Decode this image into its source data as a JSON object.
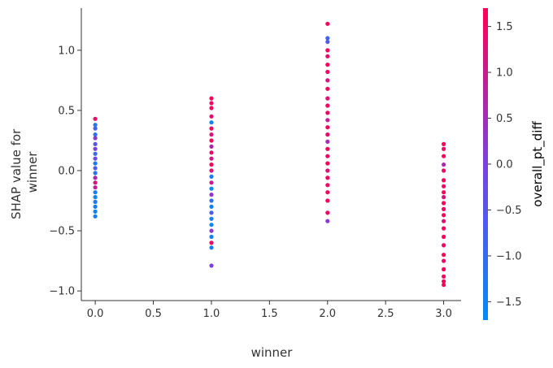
{
  "chart_data": {
    "type": "scatter",
    "title": "",
    "xlabel": "winner",
    "ylabel_lines": [
      "SHAP value for",
      "winner"
    ],
    "xlim": [
      -0.12,
      3.15
    ],
    "ylim": [
      -1.08,
      1.35
    ],
    "xticks": [
      0.0,
      0.5,
      1.0,
      1.5,
      2.0,
      2.5,
      3.0
    ],
    "xtick_labels": [
      "0.0",
      "0.5",
      "1.0",
      "1.5",
      "2.0",
      "2.5",
      "3.0"
    ],
    "yticks": [
      1.0,
      0.5,
      0.0,
      -0.5,
      -1.0
    ],
    "ytick_labels": [
      "1.0",
      "0.5",
      "0.0",
      "−0.5",
      "−1.0"
    ],
    "colorbar": {
      "label": "overall_pt_diff",
      "range": [
        -1.7,
        1.7
      ],
      "ticks": [
        1.5,
        1.0,
        0.5,
        0.0,
        -0.5,
        -1.0,
        -1.5
      ],
      "tick_labels": [
        "1.5",
        "1.0",
        "0.5",
        "0.0",
        "−0.5",
        "−1.0",
        "−1.5"
      ],
      "colors": [
        "#008bfb",
        "#7c3fe4",
        "#ff0052"
      ]
    },
    "groups": [
      {
        "x": 0.0,
        "y_range": [
          -0.38,
          0.43
        ],
        "color_range": [
          -1.7,
          1.3
        ],
        "points": [
          {
            "y": 0.43,
            "c": 1.5
          },
          {
            "y": 0.38,
            "c": -1.3
          },
          {
            "y": 0.35,
            "c": -0.8
          },
          {
            "y": 0.3,
            "c": -1.2
          },
          {
            "y": 0.27,
            "c": 0.2
          },
          {
            "y": 0.22,
            "c": -0.5
          },
          {
            "y": 0.18,
            "c": 0.0
          },
          {
            "y": 0.14,
            "c": -1.0
          },
          {
            "y": 0.1,
            "c": -0.3
          },
          {
            "y": 0.06,
            "c": -1.4
          },
          {
            "y": 0.02,
            "c": -0.6
          },
          {
            "y": -0.02,
            "c": -1.2
          },
          {
            "y": -0.06,
            "c": 0.6
          },
          {
            "y": -0.1,
            "c": 1.2
          },
          {
            "y": -0.14,
            "c": 0.9
          },
          {
            "y": -0.18,
            "c": -1.4
          },
          {
            "y": -0.22,
            "c": -1.6
          },
          {
            "y": -0.26,
            "c": -1.3
          },
          {
            "y": -0.3,
            "c": -1.5
          },
          {
            "y": -0.34,
            "c": -1.6
          },
          {
            "y": -0.38,
            "c": -1.5
          }
        ]
      },
      {
        "x": 1.0,
        "y_range": [
          -0.79,
          0.6
        ],
        "color_range": [
          -1.7,
          1.7
        ],
        "points": [
          {
            "y": 0.6,
            "c": 1.6
          },
          {
            "y": 0.56,
            "c": 1.5
          },
          {
            "y": 0.52,
            "c": 1.6
          },
          {
            "y": 0.45,
            "c": 1.4
          },
          {
            "y": 0.4,
            "c": -1.5
          },
          {
            "y": 0.35,
            "c": 1.5
          },
          {
            "y": 0.3,
            "c": 1.2
          },
          {
            "y": 0.25,
            "c": 1.6
          },
          {
            "y": 0.2,
            "c": 0.7
          },
          {
            "y": 0.15,
            "c": 1.4
          },
          {
            "y": 0.1,
            "c": 1.1
          },
          {
            "y": 0.05,
            "c": 1.6
          },
          {
            "y": 0.0,
            "c": 1.3
          },
          {
            "y": -0.05,
            "c": -1.3
          },
          {
            "y": -0.1,
            "c": 1.0
          },
          {
            "y": -0.15,
            "c": -1.6
          },
          {
            "y": -0.2,
            "c": 0.3
          },
          {
            "y": -0.25,
            "c": -1.1
          },
          {
            "y": -0.3,
            "c": -1.5
          },
          {
            "y": -0.35,
            "c": -0.7
          },
          {
            "y": -0.4,
            "c": -1.4
          },
          {
            "y": -0.45,
            "c": -1.6
          },
          {
            "y": -0.5,
            "c": 0.2
          },
          {
            "y": -0.55,
            "c": -1.5
          },
          {
            "y": -0.6,
            "c": 1.5
          },
          {
            "y": -0.64,
            "c": -1.5
          },
          {
            "y": -0.79,
            "c": 0.0
          }
        ]
      },
      {
        "x": 2.0,
        "y_range": [
          -0.42,
          1.22
        ],
        "color_range": [
          -1.0,
          1.7
        ],
        "points": [
          {
            "y": 1.22,
            "c": 1.6
          },
          {
            "y": 1.1,
            "c": -0.8
          },
          {
            "y": 1.07,
            "c": -0.6
          },
          {
            "y": 1.0,
            "c": 1.6
          },
          {
            "y": 0.95,
            "c": 1.4
          },
          {
            "y": 0.88,
            "c": 1.6
          },
          {
            "y": 0.82,
            "c": 1.5
          },
          {
            "y": 0.75,
            "c": 1.2
          },
          {
            "y": 0.68,
            "c": 1.6
          },
          {
            "y": 0.6,
            "c": 1.3
          },
          {
            "y": 0.54,
            "c": 1.6
          },
          {
            "y": 0.48,
            "c": 1.5
          },
          {
            "y": 0.42,
            "c": 0.9
          },
          {
            "y": 0.36,
            "c": 1.6
          },
          {
            "y": 0.3,
            "c": 1.4
          },
          {
            "y": 0.24,
            "c": 0.5
          },
          {
            "y": 0.18,
            "c": 1.6
          },
          {
            "y": 0.12,
            "c": 1.5
          },
          {
            "y": 0.06,
            "c": 1.6
          },
          {
            "y": 0.0,
            "c": 1.3
          },
          {
            "y": -0.06,
            "c": 1.6
          },
          {
            "y": -0.12,
            "c": 1.5
          },
          {
            "y": -0.18,
            "c": 1.6
          },
          {
            "y": -0.25,
            "c": 1.6
          },
          {
            "y": -0.35,
            "c": 1.5
          },
          {
            "y": -0.42,
            "c": 0.2
          }
        ]
      },
      {
        "x": 3.0,
        "y_range": [
          -0.95,
          0.22
        ],
        "color_range": [
          0.3,
          1.7
        ],
        "points": [
          {
            "y": 0.22,
            "c": 1.6
          },
          {
            "y": 0.18,
            "c": 1.5
          },
          {
            "y": 0.12,
            "c": 1.6
          },
          {
            "y": 0.05,
            "c": 0.6
          },
          {
            "y": 0.0,
            "c": 1.4
          },
          {
            "y": -0.08,
            "c": 1.6
          },
          {
            "y": -0.13,
            "c": 1.5
          },
          {
            "y": -0.18,
            "c": 1.6
          },
          {
            "y": -0.22,
            "c": 1.2
          },
          {
            "y": -0.27,
            "c": 1.6
          },
          {
            "y": -0.32,
            "c": 1.5
          },
          {
            "y": -0.37,
            "c": 1.6
          },
          {
            "y": -0.42,
            "c": 1.3
          },
          {
            "y": -0.48,
            "c": 1.6
          },
          {
            "y": -0.55,
            "c": 1.6
          },
          {
            "y": -0.62,
            "c": 1.5
          },
          {
            "y": -0.7,
            "c": 1.6
          },
          {
            "y": -0.75,
            "c": 1.4
          },
          {
            "y": -0.82,
            "c": 1.6
          },
          {
            "y": -0.88,
            "c": 1.5
          },
          {
            "y": -0.92,
            "c": 1.6
          },
          {
            "y": -0.95,
            "c": 1.6
          }
        ]
      }
    ],
    "grid": false,
    "legend": "colorbar-right"
  }
}
